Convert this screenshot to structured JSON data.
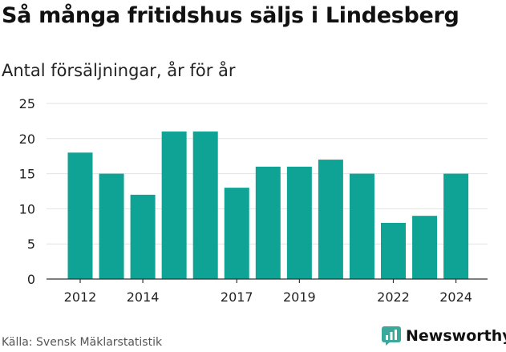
{
  "header": {
    "title": "Så många fritidshus säljs i Lindesberg",
    "subtitle": "Antal försäljningar, år för år"
  },
  "footer": {
    "source": "Källa: Svensk Mäklarstatistik",
    "brand": "Newsworthy"
  },
  "colors": {
    "bar": "#0fa396",
    "brand": "#3aa99c",
    "grid": "#e2e2e2",
    "text": "#111111"
  },
  "chart_data": {
    "type": "bar",
    "categories": [
      "2012",
      "2013",
      "2014",
      "2015",
      "2016",
      "2017",
      "2018",
      "2019",
      "2020",
      "2021",
      "2022",
      "2023",
      "2024"
    ],
    "values": [
      18,
      15,
      12,
      21,
      21,
      13,
      16,
      16,
      17,
      15,
      8,
      9,
      15
    ],
    "x_tick_labels": [
      "2012",
      "2014",
      "2017",
      "2019",
      "2022",
      "2024"
    ],
    "y_ticks": [
      0,
      5,
      10,
      15,
      20,
      25
    ],
    "ylim": [
      0,
      25
    ],
    "grid": true,
    "legend": "none"
  }
}
